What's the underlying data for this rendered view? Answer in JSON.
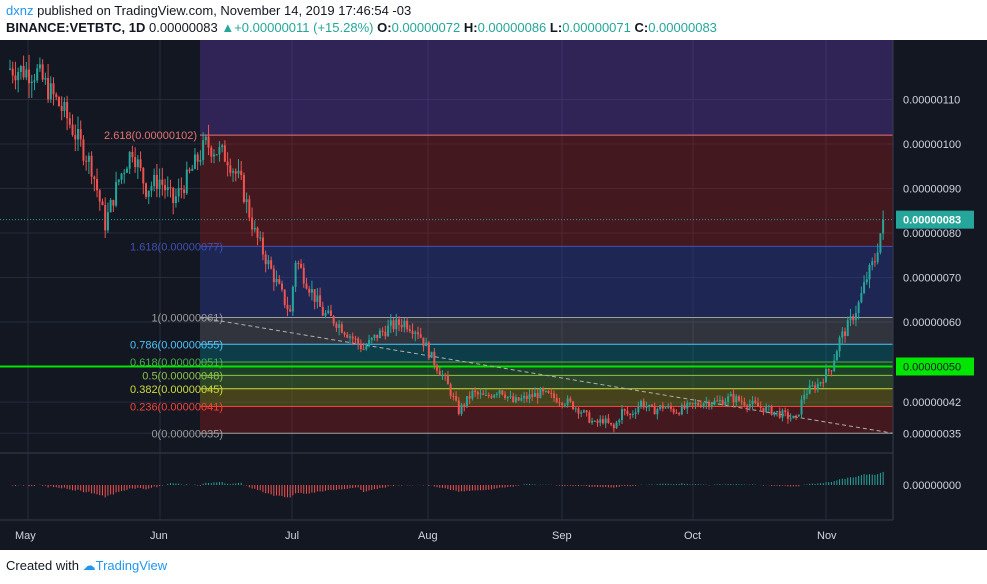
{
  "header": {
    "user": "dxnz",
    "published": "published on TradingView.com, November 14, 2019 17:46:54 -03",
    "symbol": "BINANCE:VETBTC, 1D",
    "price": "0.00000083",
    "change": "+0.00000011 (+15.28%)",
    "o_label": "O:",
    "o_value": "0.00000072",
    "h_label": "H:",
    "h_value": "0.00000086",
    "l_label": "L:",
    "l_value": "0.00000071",
    "c_label": "C:",
    "c_value": "0.00000083"
  },
  "footer": {
    "created": "Created with",
    "brand": "TradingView"
  },
  "colors": {
    "background": "#131722",
    "up": "#26a69a",
    "down": "#ef5350",
    "grid": "#262b3e",
    "axis_text": "#d1d4dc"
  },
  "chart_data": {
    "type": "candlestick",
    "x_labels": [
      "May",
      "Jun",
      "Jul",
      "Aug",
      "Sep",
      "Oct",
      "Nov"
    ],
    "y_ticks": [
      "0.00000110",
      "0.00000100",
      "0.00000090",
      "0.00000080",
      "0.00000070",
      "0.00000060",
      "0.00000042",
      "0.00000035"
    ],
    "price_badge": "0.00000083",
    "level_badge": "0.00000050",
    "oscillator_tick": "0.00000000",
    "fib_levels": [
      {
        "label": "1.618(0.00000077)",
        "value": 7.7e-07,
        "color": "#3f51b5"
      },
      {
        "label": "1(0.00000061)",
        "value": 6.1e-07,
        "color": "#9e9e9e"
      },
      {
        "label": "0.786(0.00000055)",
        "value": 5.5e-07,
        "color": "#4fc3f7"
      },
      {
        "label": "0.618(0.00000051)",
        "value": 5.1e-07,
        "color": "#4caf50"
      },
      {
        "label": "0.5(0.00000048)",
        "value": 4.8e-07,
        "color": "#8bc34a"
      },
      {
        "label": "0.382(0.00000045)",
        "value": 4.5e-07,
        "color": "#cddc39"
      },
      {
        "label": "0.236(0.00000041)",
        "value": 4.1e-07,
        "color": "#f44336"
      },
      {
        "label": "0(0.00000035)",
        "value": 3.5e-07,
        "color": "#9e9e9e"
      }
    ],
    "fib_top_label": "2.618(0.00000102)",
    "close_path": [
      [
        0,
        117
      ],
      [
        10,
        116
      ],
      [
        20,
        107
      ],
      [
        30,
        95
      ],
      [
        35,
        82
      ],
      [
        40,
        92
      ],
      [
        45,
        99
      ],
      [
        50,
        90
      ],
      [
        55,
        92
      ],
      [
        60,
        87
      ],
      [
        65,
        92
      ],
      [
        72,
        100
      ],
      [
        80,
        97
      ],
      [
        85,
        91
      ],
      [
        90,
        80
      ],
      [
        95,
        73
      ],
      [
        100,
        66
      ],
      [
        103,
        62
      ],
      [
        105,
        74
      ],
      [
        110,
        68
      ],
      [
        115,
        62
      ],
      [
        120,
        60
      ],
      [
        125,
        57
      ],
      [
        130,
        54
      ],
      [
        135,
        57
      ],
      [
        140,
        59
      ],
      [
        145,
        60
      ],
      [
        150,
        58
      ],
      [
        155,
        52
      ],
      [
        160,
        47
      ],
      [
        165,
        40
      ],
      [
        170,
        44
      ],
      [
        175,
        43
      ],
      [
        180,
        45
      ],
      [
        185,
        42
      ],
      [
        190,
        43
      ],
      [
        195,
        44
      ],
      [
        200,
        43
      ],
      [
        205,
        42
      ],
      [
        210,
        40
      ],
      [
        215,
        37
      ],
      [
        218,
        38
      ],
      [
        222,
        36
      ],
      [
        225,
        40
      ],
      [
        228,
        39
      ],
      [
        232,
        42
      ],
      [
        236,
        40
      ],
      [
        240,
        41
      ],
      [
        245,
        40
      ],
      [
        250,
        41
      ],
      [
        255,
        42
      ],
      [
        260,
        42
      ],
      [
        265,
        43
      ],
      [
        270,
        42
      ],
      [
        275,
        41
      ],
      [
        280,
        40
      ],
      [
        285,
        39
      ],
      [
        289,
        38
      ],
      [
        292,
        44
      ],
      [
        297,
        46
      ],
      [
        302,
        50
      ],
      [
        305,
        56
      ],
      [
        308,
        59
      ],
      [
        312,
        64
      ],
      [
        315,
        70
      ],
      [
        318,
        74
      ],
      [
        321,
        83
      ]
    ]
  }
}
